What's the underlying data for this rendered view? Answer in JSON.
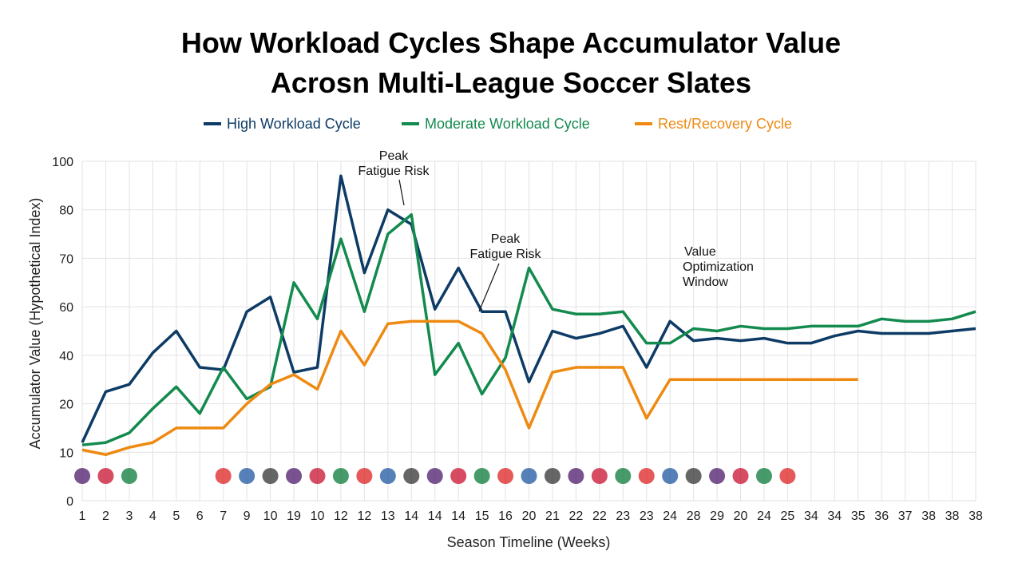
{
  "chart_data": {
    "type": "line",
    "title": [
      "How Workload Cycles Shape Accumulator Value",
      "Acrosn Multi-League Soccer Slates"
    ],
    "x_label": "Season Timeline (Weeks)",
    "y_label": "Accumulator Value (Hypothetical Index)",
    "categories": [
      "1",
      "2",
      "3",
      "4",
      "5",
      "6",
      "7",
      "9",
      "10",
      "19",
      "10",
      "12",
      "12",
      "13",
      "14",
      "14",
      "14",
      "15",
      "16",
      "20",
      "21",
      "22",
      "22",
      "23",
      "23",
      "24",
      "28",
      "29",
      "20",
      "24",
      "25",
      "34",
      "34",
      "35",
      "36",
      "37",
      "38",
      "38",
      "38"
    ],
    "series": [
      {
        "name": "High Workload Cycle",
        "color": "#0d3b66",
        "values": [
          12,
          25,
          28,
          41,
          50,
          35,
          34,
          58,
          62,
          33,
          35,
          94,
          67,
          80,
          77,
          59,
          68,
          58,
          58,
          29,
          50,
          47,
          49,
          52,
          35,
          54,
          46,
          47,
          46,
          47,
          45,
          45,
          48,
          50,
          49,
          49,
          49,
          50,
          51
        ]
      },
      {
        "name": "Moderate Workload Cycle",
        "color": "#138a4e",
        "values": [
          11.5,
          12,
          14,
          19,
          27,
          18,
          35,
          22,
          27,
          65,
          55,
          74,
          58,
          75,
          79,
          32,
          45,
          24,
          39,
          68,
          59,
          57,
          57,
          58,
          45,
          45,
          51,
          50,
          52,
          51,
          51,
          52,
          52,
          52,
          55,
          54,
          54,
          55,
          58
        ]
      },
      {
        "name": "Rest/Recovery Cycle",
        "color": "#ee8a12",
        "values": [
          10.5,
          9.5,
          11,
          12,
          15,
          15,
          15,
          20,
          28,
          32,
          26,
          50,
          36,
          53,
          54,
          54,
          54,
          49,
          34,
          15,
          33,
          35,
          35,
          35,
          17,
          30,
          30,
          30,
          30,
          30,
          30,
          30,
          30,
          30,
          null,
          null,
          null,
          null,
          null
        ]
      }
    ],
    "ylim": [
      0,
      100
    ],
    "yticks": [
      0,
      10,
      20,
      40,
      60,
      70,
      80,
      100
    ],
    "grid": true,
    "legend": "top",
    "annotations": [
      {
        "lines": [
          "Peak",
          "Fatigue Risk"
        ]
      },
      {
        "lines": [
          "Peak",
          "Fatigue Risk"
        ]
      },
      {
        "lines": [
          "Value",
          "Optimization",
          "Window"
        ]
      }
    ]
  }
}
